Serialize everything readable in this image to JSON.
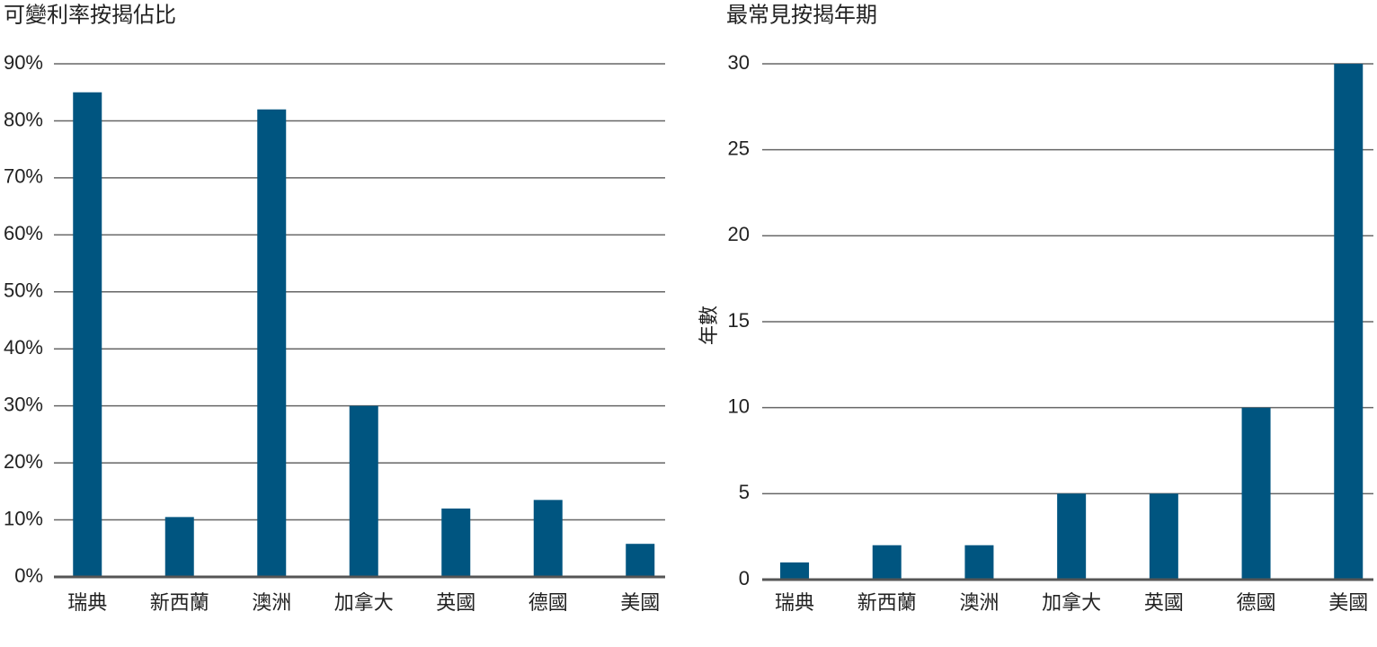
{
  "chart_data": [
    {
      "type": "bar",
      "title": "可變利率按揭佔比",
      "categories": [
        "瑞典",
        "新西蘭",
        "澳洲",
        "加拿大",
        "英國",
        "德國",
        "美國"
      ],
      "values": [
        85,
        10.5,
        82,
        30,
        12,
        13.5,
        5.8
      ],
      "color": "#005580",
      "ylim": [
        0,
        90
      ],
      "yticks": [
        {
          "value": 0,
          "label": "0%"
        },
        {
          "value": 10,
          "label": "10%"
        },
        {
          "value": 20,
          "label": "20%"
        },
        {
          "value": 30,
          "label": "30%"
        },
        {
          "value": 40,
          "label": "40%"
        },
        {
          "value": 50,
          "label": "50%"
        },
        {
          "value": 60,
          "label": "60%"
        },
        {
          "value": 70,
          "label": "70%"
        },
        {
          "value": 80,
          "label": "80%"
        },
        {
          "value": 90,
          "label": "90%"
        }
      ],
      "grid": true
    },
    {
      "type": "bar",
      "title": "最常見按揭年期",
      "y_label": "年數",
      "categories": [
        "瑞典",
        "新西蘭",
        "澳洲",
        "加拿大",
        "英國",
        "德國",
        "美國"
      ],
      "values": [
        1,
        2,
        2,
        5,
        5,
        10,
        30
      ],
      "color": "#005580",
      "ylim": [
        0,
        30
      ],
      "yticks": [
        0,
        5,
        10,
        15,
        20,
        25,
        30
      ],
      "grid": true
    }
  ]
}
